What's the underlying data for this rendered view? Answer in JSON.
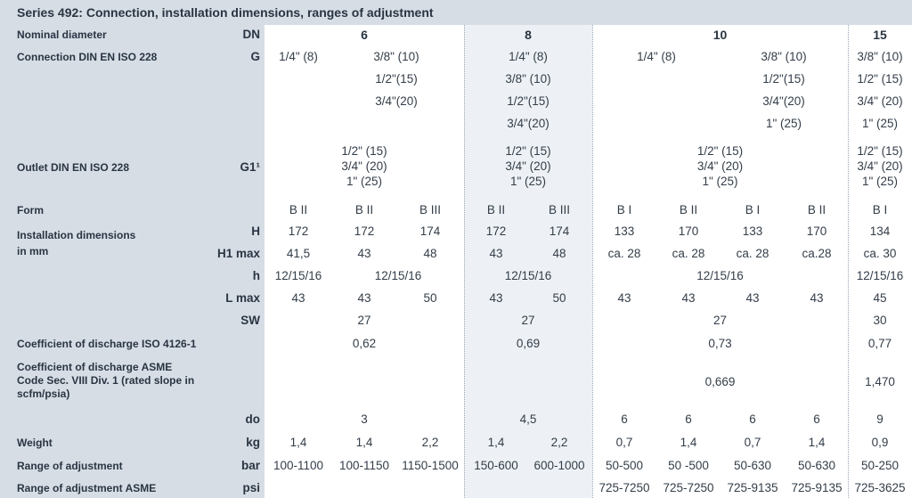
{
  "title": "Series 492: Connection, installation dimensions, ranges of adjustment",
  "rows": {
    "nominal": {
      "label": "Nominal diameter",
      "unit": "DN",
      "values": [
        "6",
        "8",
        "10",
        "15"
      ]
    },
    "connection": {
      "label": "Connection DIN EN ISO 228",
      "unit": "G",
      "dn6": [
        "1/4\" (8)",
        "3/8\" (10)",
        "1/2\"(15)",
        "3/4\"(20)"
      ],
      "dn8": [
        "1/4\" (8)",
        "3/8\" (10)",
        "1/2\"(15)",
        "3/4\"(20)"
      ],
      "dn10": [
        "1/4\" (8)",
        "3/8\" (10)",
        "1/2\"(15)",
        "3/4\"(20)",
        "1\" (25)"
      ],
      "dn15": [
        "3/8\" (10)",
        "1/2\" (15)",
        "3/4\" (20)",
        "1\" (25)"
      ]
    },
    "outlet": {
      "label": "Outlet DIN EN ISO 228",
      "unit": "G1¹",
      "values": [
        "1/2\" (15)",
        "3/4\" (20)",
        "1\" (25)"
      ]
    },
    "form": {
      "label": "Form",
      "values": [
        "B II",
        "B II",
        "B III",
        "B II",
        "B III",
        "B I",
        "B II",
        "B I",
        "B II",
        "B I"
      ]
    },
    "install": {
      "label_1": "Installation dimensions",
      "label_2": "in mm"
    },
    "h_cap": {
      "unit": "H",
      "values": [
        "172",
        "172",
        "174",
        "172",
        "174",
        "133",
        "170",
        "133",
        "170",
        "134"
      ]
    },
    "h1max": {
      "unit": "H1 max",
      "values": [
        "41,5",
        "43",
        "48",
        "43",
        "48",
        "ca. 28",
        "ca. 28",
        "ca. 28",
        "ca.28",
        "ca. 30"
      ]
    },
    "h_small": {
      "unit": "h",
      "values": [
        "12/15/16",
        "12/15/16",
        "12/15/16",
        "12/15/16",
        "12/15/16"
      ]
    },
    "lmax": {
      "unit": "L max",
      "values": [
        "43",
        "43",
        "50",
        "43",
        "50",
        "43",
        "43",
        "43",
        "43",
        "45"
      ]
    },
    "sw": {
      "unit": "SW",
      "values": [
        "27",
        "27",
        "27",
        "30"
      ]
    },
    "cod_iso": {
      "label": "Coefficient of discharge ISO 4126-1",
      "values": [
        "0,62",
        "0,69",
        "0,73",
        "0,77"
      ]
    },
    "cod_asme": {
      "label_1": "Coefficient of discharge ASME",
      "label_2": "Code Sec. VIII Div. 1 (rated slope in",
      "label_3": "scfm/psia)",
      "values": [
        "0,669",
        "1,470"
      ]
    },
    "do": {
      "unit": "do",
      "values": [
        "3",
        "4,5",
        "6",
        "6",
        "6",
        "6",
        "9"
      ]
    },
    "weight": {
      "label": "Weight",
      "unit": "kg",
      "values": [
        "1,4",
        "1,4",
        "2,2",
        "1,4",
        "2,2",
        "0,7",
        "1,4",
        "0,7",
        "1,4",
        "0,9"
      ]
    },
    "range": {
      "label": "Range of adjustment",
      "unit": "bar",
      "values": [
        "100-1100",
        "100-1150",
        "1150-1500",
        "150-600",
        "600-1000",
        "50-500",
        "50 -500",
        "50-630",
        "50-630",
        "50-250"
      ]
    },
    "range_asme": {
      "label": "Range of adjustment ASME",
      "unit": "psi",
      "values": [
        "725-7250",
        "725-7250",
        "725-9135",
        "725-9135",
        "725-3625"
      ]
    }
  }
}
